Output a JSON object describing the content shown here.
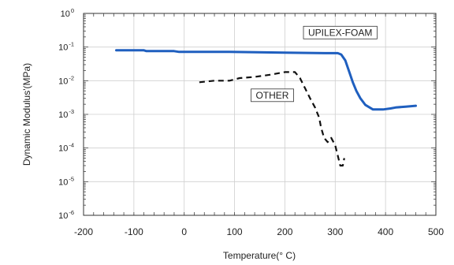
{
  "chart_data": {
    "type": "line",
    "title": "",
    "xlabel": "Temperature(° C)",
    "ylabel": "Dynamic Modulus'(MPa)",
    "xlim": [
      -200,
      500
    ],
    "ylim_exponent": [
      -6,
      0
    ],
    "y_scale": "log",
    "grid": true,
    "x_ticks": [
      -200,
      -100,
      0,
      100,
      200,
      300,
      400,
      500
    ],
    "x_tick_labels": [
      "-200",
      "-100",
      "0",
      "100",
      "200",
      "300",
      "400",
      "500"
    ],
    "y_ticks": [
      1e-06,
      1e-05,
      0.0001,
      0.001,
      0.01,
      0.1,
      1
    ],
    "y_tick_base": "10",
    "y_tick_exponents": [
      "-6",
      "-5",
      "-4",
      "-3",
      "-2",
      "-1",
      "0"
    ],
    "series": [
      {
        "name": "UPILEX-FOAM",
        "color": "#1f5fbf",
        "style": "solid",
        "x": [
          -135,
          -80,
          -75,
          -20,
          -10,
          90,
          200,
          280,
          305,
          312,
          320,
          328,
          335,
          342,
          350,
          360,
          375,
          385,
          395,
          410,
          420,
          440,
          460
        ],
        "y": [
          0.08,
          0.08,
          0.076,
          0.076,
          0.072,
          0.072,
          0.068,
          0.066,
          0.066,
          0.06,
          0.04,
          0.018,
          0.009,
          0.005,
          0.003,
          0.0019,
          0.0014,
          0.0014,
          0.0014,
          0.0015,
          0.0016,
          0.0017,
          0.0018
        ]
      },
      {
        "name": "OTHER",
        "color": "#111111",
        "style": "dashed",
        "x": [
          30,
          60,
          90,
          110,
          140,
          170,
          200,
          220,
          230,
          240,
          250,
          260,
          268,
          272,
          278,
          285,
          292,
          300,
          305,
          310,
          315,
          318
        ],
        "y": [
          0.009,
          0.01,
          0.01,
          0.012,
          0.013,
          0.015,
          0.018,
          0.018,
          0.012,
          0.006,
          0.003,
          0.0016,
          0.0008,
          0.0004,
          0.0002,
          0.00015,
          0.0002,
          0.00012,
          6e-05,
          3e-05,
          3e-05,
          5e-05
        ]
      }
    ],
    "annotations": [
      {
        "text": "UPILEX-FOAM",
        "series": "UPILEX-FOAM",
        "x": 310,
        "y": 0.27
      },
      {
        "text": "OTHER",
        "series": "OTHER",
        "x": 175,
        "y": 0.0037
      }
    ]
  }
}
